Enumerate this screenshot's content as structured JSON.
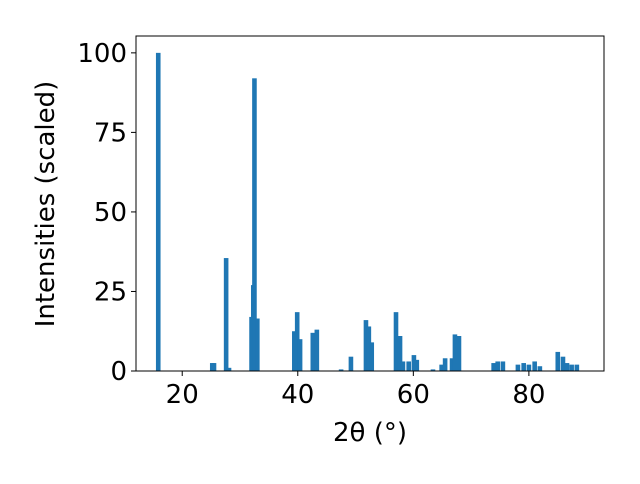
{
  "chart_data": {
    "type": "bar",
    "x_label": "2θ (°)",
    "y_label": "Intensities (scaled)",
    "x": [
      15.85,
      25.2,
      25.5,
      27.6,
      28.1,
      32.0,
      32.3,
      32.5,
      33.0,
      39.4,
      39.9,
      40.4,
      42.6,
      43.3,
      47.5,
      49.2,
      51.8,
      52.3,
      52.8,
      57.0,
      57.7,
      58.2,
      59.2,
      60.1,
      60.6,
      63.4,
      64.9,
      65.5,
      66.7,
      67.2,
      67.9,
      73.9,
      74.6,
      75.5,
      78.1,
      79.1,
      80.0,
      81.0,
      81.9,
      85.0,
      85.9,
      86.6,
      87.4,
      88.3
    ],
    "values": [
      100,
      2.5,
      2.5,
      35.5,
      1,
      17,
      27,
      92,
      16.5,
      12.5,
      18.5,
      10,
      12,
      13,
      0.5,
      4.5,
      16,
      14,
      9,
      18.5,
      11,
      3,
      3,
      5,
      3.5,
      0.5,
      2,
      4,
      4,
      11.5,
      11,
      2.5,
      3,
      3,
      2,
      2.5,
      2,
      3,
      1.5,
      6,
      4.5,
      2.5,
      2,
      2
    ],
    "color": "#1f77b4",
    "xlim": [
      12,
      93
    ],
    "ylim": [
      0,
      105.3
    ],
    "xticks": [
      20,
      40,
      60,
      80
    ],
    "yticks": [
      0,
      25,
      50,
      75,
      100
    ]
  }
}
